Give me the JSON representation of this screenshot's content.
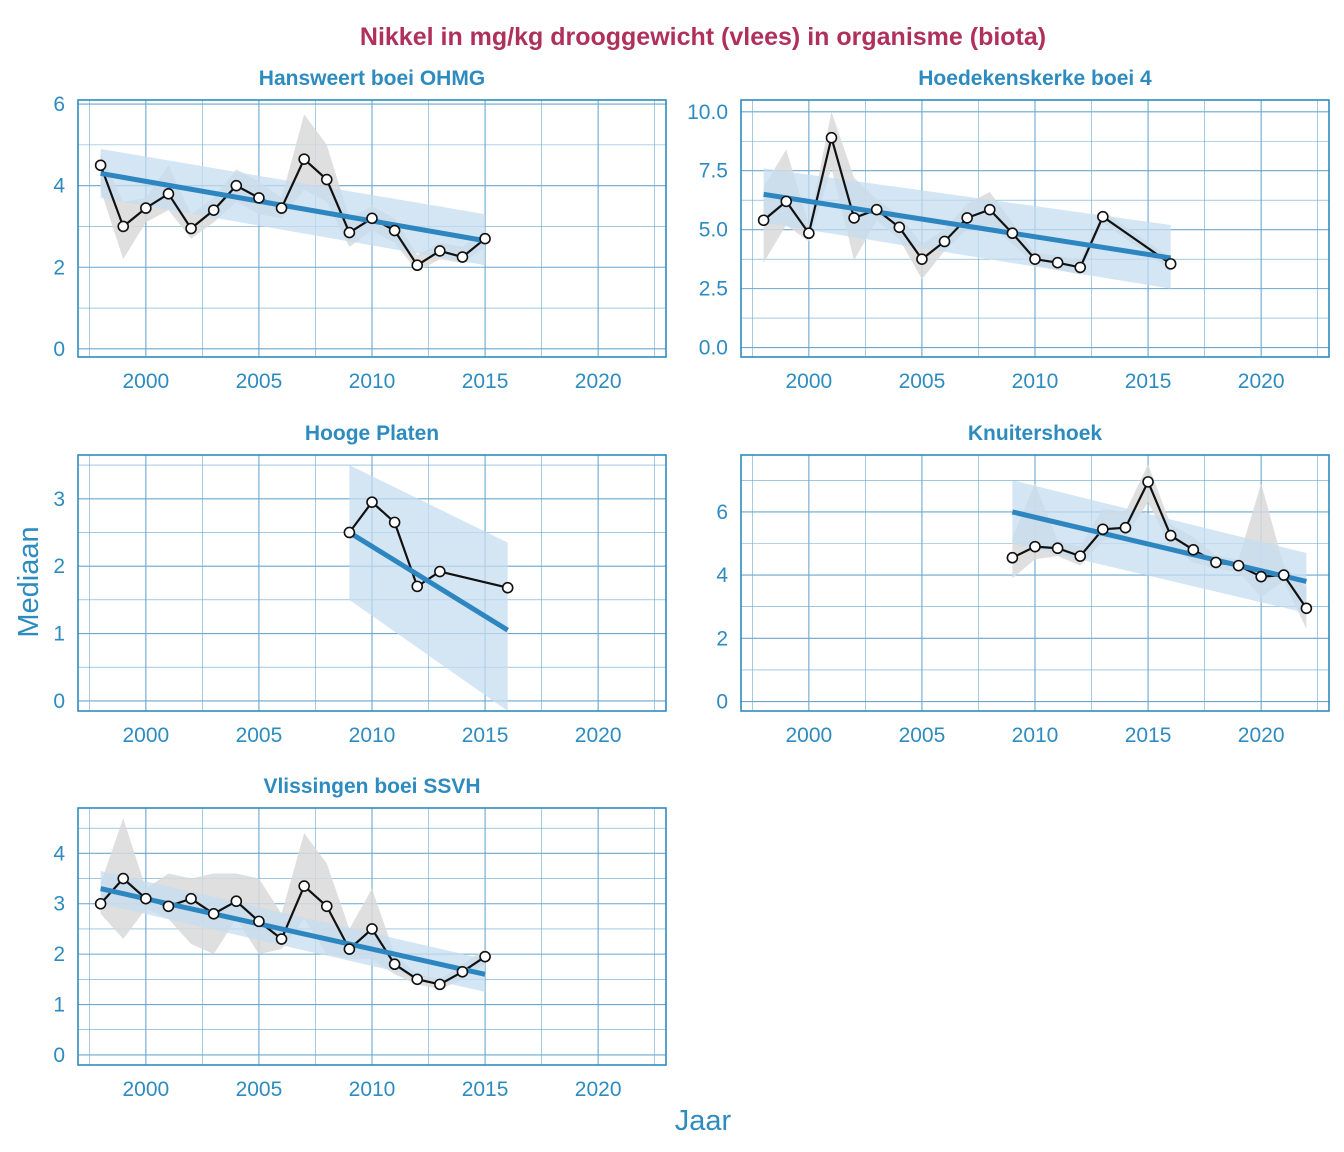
{
  "title": "Nikkel in mg/kg drooggewicht (vlees) in organisme (biota)",
  "xlabel": "Jaar",
  "ylabel": "Mediaan",
  "colors": {
    "title": "#b0305c",
    "axis": "#2e8bc0",
    "grid": "#6aa8cf",
    "trend": "#2e86c1",
    "trend_band": "#c6dcef",
    "data_band": "#d9d9d9",
    "line": "#111111"
  },
  "chart_data": [
    {
      "type": "line",
      "title": "Hansweert boei OHMG",
      "xlim": [
        1997,
        2023
      ],
      "ylim": [
        -0.2,
        6.1
      ],
      "xticks": [
        2000,
        2005,
        2010,
        2015,
        2020
      ],
      "yticks": [
        0,
        2,
        4,
        6
      ],
      "yticklabels": [
        "0",
        "2",
        "4",
        "6"
      ],
      "x": [
        1998,
        1999,
        2000,
        2001,
        2002,
        2003,
        2004,
        2005,
        2006,
        2007,
        2008,
        2009,
        2010,
        2011,
        2012,
        2013,
        2014,
        2015
      ],
      "y": [
        4.5,
        3.0,
        3.45,
        3.8,
        2.95,
        3.4,
        4.0,
        3.7,
        3.45,
        4.65,
        4.15,
        2.85,
        3.2,
        2.9,
        2.05,
        2.4,
        2.25,
        2.7
      ],
      "band_lo": [
        3.9,
        2.2,
        3.1,
        3.4,
        2.7,
        3.1,
        3.6,
        3.3,
        3.2,
        3.9,
        3.6,
        2.5,
        2.9,
        2.6,
        1.9,
        2.2,
        2.1,
        2.5
      ],
      "band_hi": [
        4.8,
        3.6,
        3.7,
        4.5,
        3.3,
        3.7,
        4.4,
        4.1,
        3.7,
        5.75,
        5.0,
        3.2,
        3.5,
        3.2,
        2.3,
        2.6,
        2.5,
        2.9
      ],
      "trend": {
        "x": [
          1998,
          2015
        ],
        "y": [
          4.3,
          2.65
        ],
        "lo": [
          3.7,
          2.05
        ],
        "hi": [
          4.9,
          3.3
        ]
      }
    },
    {
      "type": "line",
      "title": "Hoedekenskerke boei 4",
      "xlim": [
        1997,
        2023
      ],
      "ylim": [
        -0.4,
        10.5
      ],
      "xticks": [
        2000,
        2005,
        2010,
        2015,
        2020
      ],
      "yticks": [
        0,
        2.5,
        5,
        7.5,
        10
      ],
      "yticklabels": [
        "0.0",
        "2.5",
        "5.0",
        "7.5",
        "10.0"
      ],
      "x": [
        1998,
        1999,
        2000,
        2001,
        2002,
        2003,
        2004,
        2005,
        2006,
        2007,
        2008,
        2009,
        2010,
        2011,
        2012,
        2013,
        2016
      ],
      "y": [
        5.4,
        6.2,
        4.85,
        8.9,
        5.5,
        5.85,
        5.1,
        3.75,
        4.5,
        5.5,
        5.85,
        4.85,
        3.75,
        3.6,
        3.4,
        5.55,
        3.55
      ],
      "band_lo": [
        3.6,
        5.2,
        4.5,
        7.6,
        3.7,
        5.4,
        4.6,
        2.9,
        4.1,
        5.0,
        5.2,
        4.4,
        3.5,
        3.3,
        3.1,
        5.3,
        3.3
      ],
      "band_hi": [
        6.8,
        8.4,
        5.2,
        10.0,
        7.2,
        6.3,
        5.6,
        4.4,
        5.0,
        6.1,
        6.6,
        5.3,
        4.0,
        3.9,
        3.7,
        5.8,
        3.8
      ],
      "trend": {
        "x": [
          1998,
          2016
        ],
        "y": [
          6.5,
          3.8
        ],
        "lo": [
          5.3,
          2.5
        ],
        "hi": [
          7.6,
          5.2
        ]
      }
    },
    {
      "type": "line",
      "title": "Hooge Platen",
      "xlim": [
        1997,
        2023
      ],
      "ylim": [
        -0.15,
        3.65
      ],
      "xticks": [
        2000,
        2005,
        2010,
        2015,
        2020
      ],
      "yticks": [
        0,
        1,
        2,
        3
      ],
      "yticklabels": [
        "0",
        "1",
        "2",
        "3"
      ],
      "x": [
        2009,
        2010,
        2011,
        2012,
        2013,
        2016
      ],
      "y": [
        2.5,
        2.95,
        2.65,
        1.7,
        1.92,
        1.68
      ],
      "band_lo": [],
      "band_hi": [],
      "trend": {
        "x": [
          2009,
          2016
        ],
        "y": [
          2.5,
          1.05
        ],
        "lo": [
          1.5,
          -0.15
        ],
        "hi": [
          3.5,
          2.35
        ]
      }
    },
    {
      "type": "line",
      "title": "Knuitershoek",
      "xlim": [
        1997,
        2023
      ],
      "ylim": [
        -0.3,
        7.8
      ],
      "xticks": [
        2000,
        2005,
        2010,
        2015,
        2020
      ],
      "yticks": [
        0,
        2,
        4,
        6
      ],
      "yticklabels": [
        "0",
        "2",
        "4",
        "6"
      ],
      "x": [
        2009,
        2010,
        2011,
        2012,
        2013,
        2014,
        2015,
        2016,
        2017,
        2018,
        2019,
        2020,
        2021,
        2022
      ],
      "y": [
        4.55,
        4.9,
        4.85,
        4.6,
        5.45,
        5.5,
        6.95,
        5.25,
        4.8,
        4.4,
        4.3,
        3.95,
        4.0,
        2.95
      ],
      "band_lo": [
        3.9,
        4.5,
        4.6,
        4.3,
        5.1,
        5.2,
        6.3,
        4.9,
        4.4,
        4.2,
        4.1,
        3.3,
        3.8,
        2.3
      ],
      "band_hi": [
        5.2,
        6.9,
        5.1,
        4.9,
        6.1,
        6.0,
        7.5,
        5.6,
        5.2,
        4.6,
        4.5,
        6.9,
        4.3,
        3.6
      ],
      "trend": {
        "x": [
          2009,
          2022
        ],
        "y": [
          6.0,
          3.8
        ],
        "lo": [
          5.0,
          2.8
        ],
        "hi": [
          7.0,
          4.7
        ]
      }
    },
    {
      "type": "line",
      "title": "Vlissingen boei SSVH",
      "xlim": [
        1997,
        2023
      ],
      "ylim": [
        -0.2,
        4.9
      ],
      "xticks": [
        2000,
        2005,
        2010,
        2015,
        2020
      ],
      "yticks": [
        0,
        1,
        2,
        3,
        4
      ],
      "yticklabels": [
        "0",
        "1",
        "2",
        "3",
        "4"
      ],
      "x": [
        1998,
        1999,
        2000,
        2001,
        2002,
        2003,
        2004,
        2005,
        2006,
        2007,
        2008,
        2009,
        2010,
        2011,
        2012,
        2013,
        2014,
        2015
      ],
      "y": [
        3.0,
        3.5,
        3.1,
        2.95,
        3.1,
        2.8,
        3.05,
        2.65,
        2.3,
        3.35,
        2.95,
        2.1,
        2.5,
        1.8,
        1.5,
        1.4,
        1.65,
        1.95
      ],
      "band_lo": [
        2.8,
        2.3,
        2.9,
        2.7,
        2.2,
        2.0,
        2.7,
        2.0,
        2.1,
        2.7,
        2.0,
        1.9,
        1.9,
        1.6,
        1.4,
        1.3,
        1.5,
        1.8
      ],
      "band_hi": [
        3.4,
        4.7,
        3.3,
        3.6,
        3.5,
        3.6,
        3.6,
        3.5,
        2.8,
        4.4,
        3.8,
        2.5,
        3.3,
        2.0,
        1.6,
        1.5,
        1.8,
        2.1
      ],
      "trend": {
        "x": [
          1998,
          2015
        ],
        "y": [
          3.3,
          1.6
        ],
        "lo": [
          3.0,
          1.25
        ],
        "hi": [
          3.65,
          1.9
        ]
      }
    }
  ]
}
